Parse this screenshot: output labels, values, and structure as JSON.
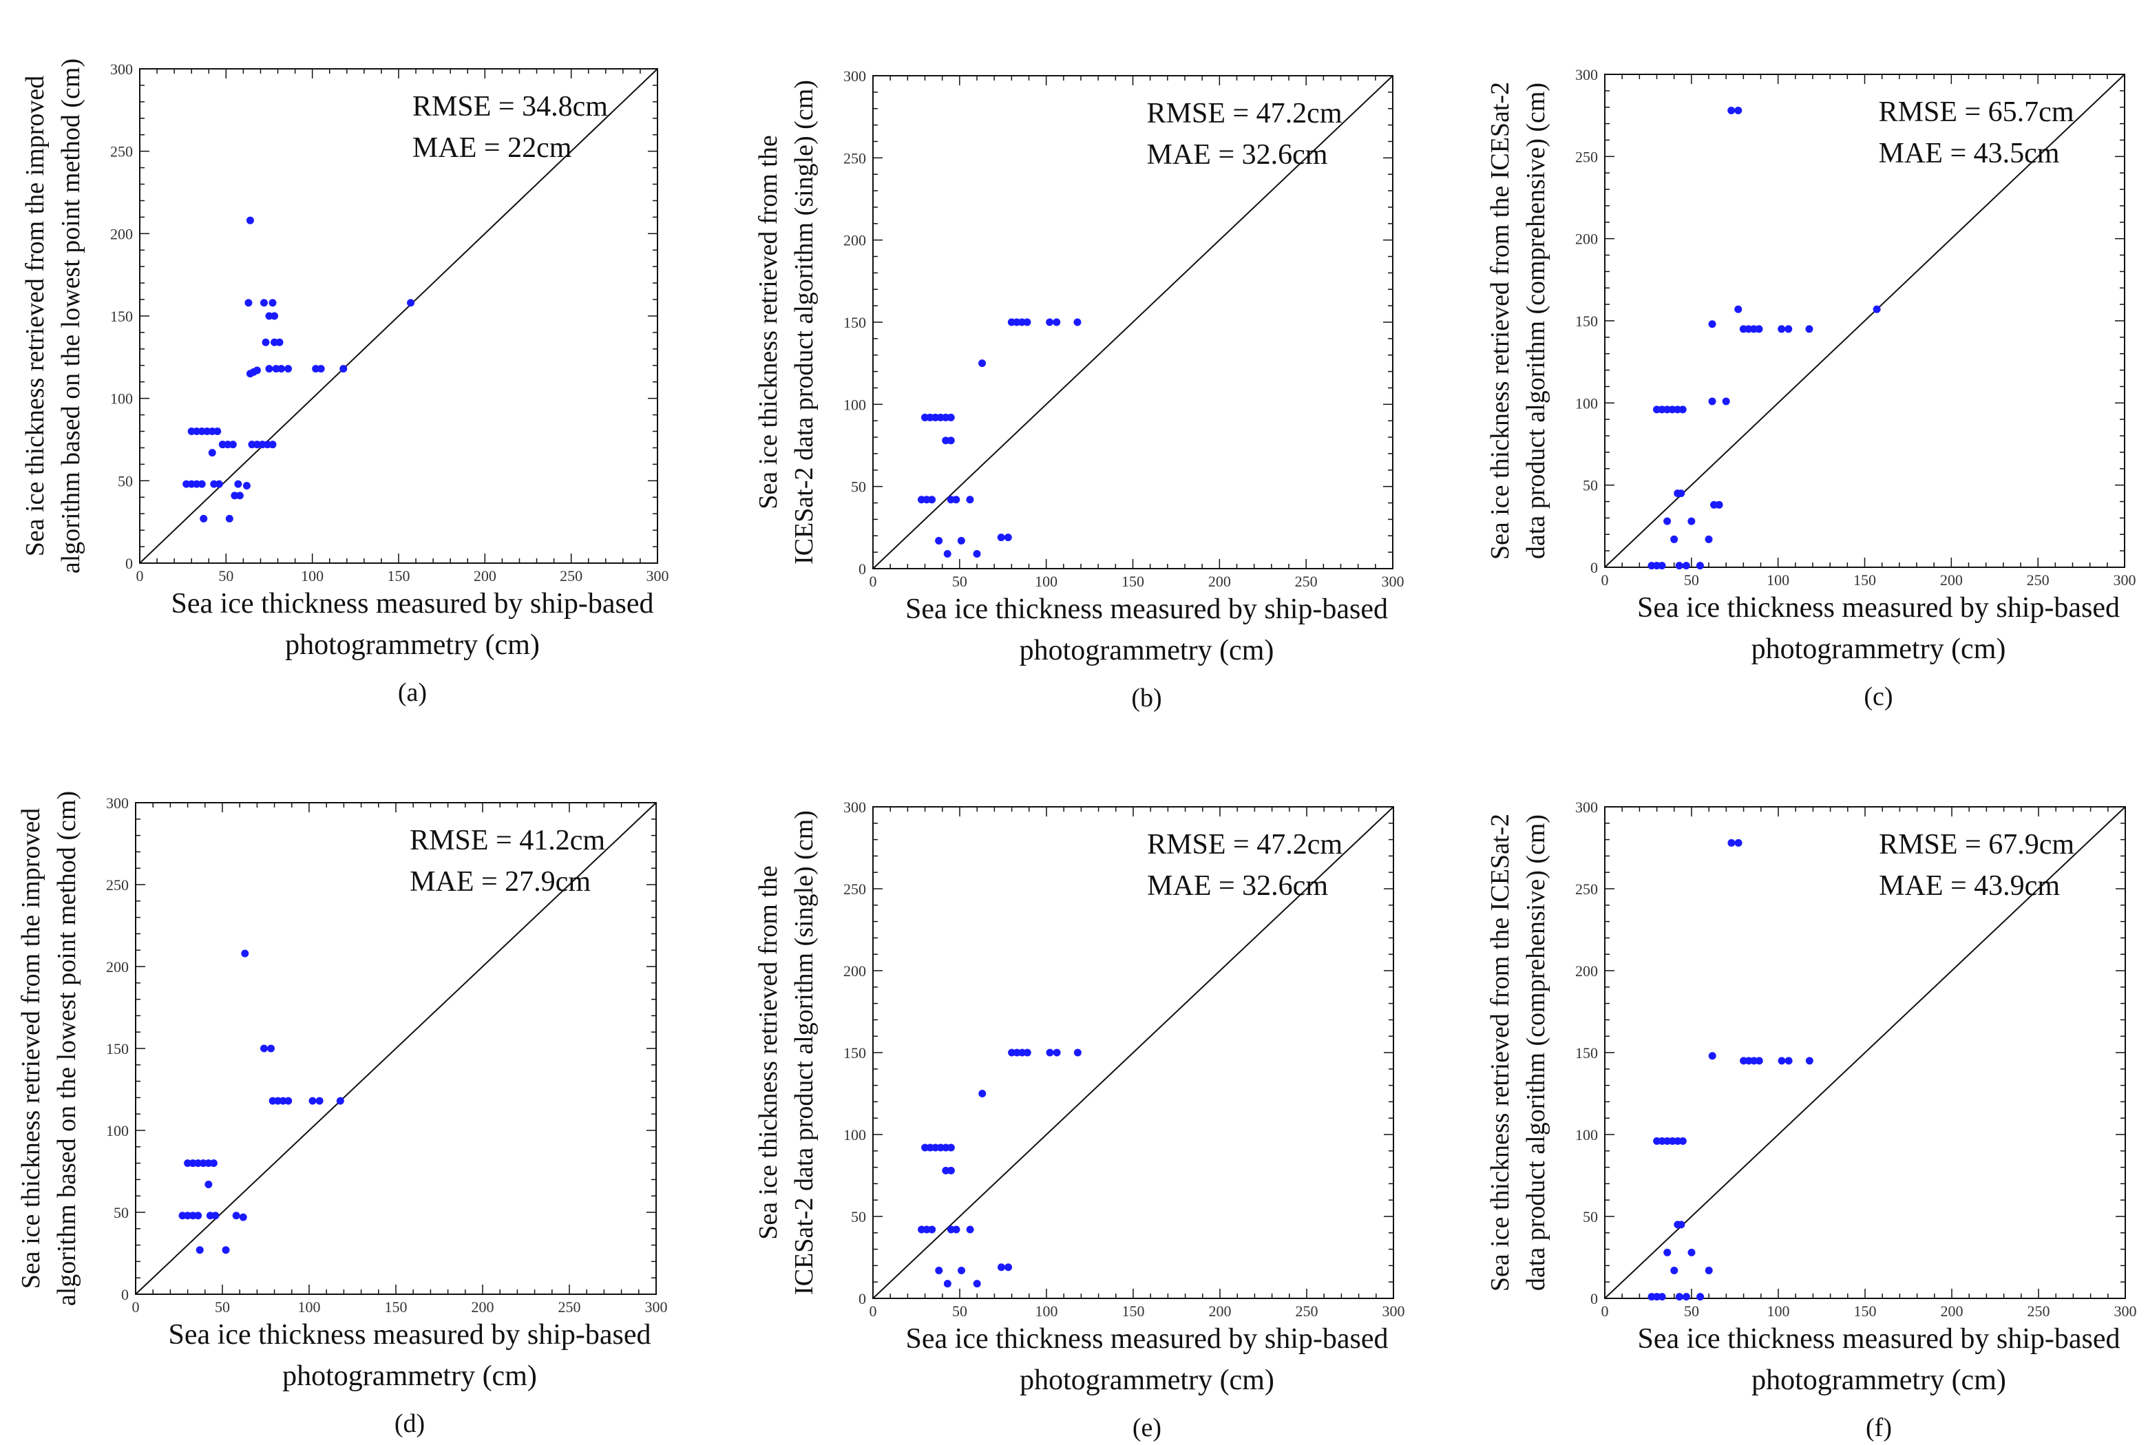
{
  "chart_data": [
    {
      "type": "scatter",
      "panel_label": "(a)",
      "xlabel": [
        "Sea ice thickness measured by ship-based",
        "photogrammetry (cm)"
      ],
      "ylabel": [
        "Sea ice thickness retrieved from the improved",
        "algorithm based on the lowest point method (cm)"
      ],
      "xlim": [
        0,
        300
      ],
      "ylim": [
        0,
        300
      ],
      "xticks": [
        0,
        50,
        100,
        150,
        200,
        250,
        300
      ],
      "yticks": [
        0,
        50,
        100,
        150,
        200,
        250,
        300
      ],
      "annotations": [
        "RMSE = 34.8cm",
        "MAE = 22cm"
      ],
      "reference_line": "1:1",
      "marker_color": "#1a1aff",
      "points": [
        [
          27,
          48
        ],
        [
          30,
          48
        ],
        [
          33,
          48
        ],
        [
          36,
          48
        ],
        [
          30,
          80
        ],
        [
          33,
          80
        ],
        [
          36,
          80
        ],
        [
          39,
          80
        ],
        [
          42,
          80
        ],
        [
          45,
          80
        ],
        [
          42,
          67
        ],
        [
          37,
          27
        ],
        [
          43,
          48
        ],
        [
          46,
          48
        ],
        [
          48,
          72
        ],
        [
          51,
          72
        ],
        [
          54,
          72
        ],
        [
          52,
          27
        ],
        [
          55,
          41
        ],
        [
          58,
          41
        ],
        [
          57,
          48
        ],
        [
          62,
          47
        ],
        [
          63,
          158
        ],
        [
          64,
          208
        ],
        [
          64,
          115
        ],
        [
          66,
          116
        ],
        [
          68,
          117
        ],
        [
          65,
          72
        ],
        [
          68,
          72
        ],
        [
          71,
          72
        ],
        [
          74,
          72
        ],
        [
          77,
          72
        ],
        [
          72,
          158
        ],
        [
          77,
          158
        ],
        [
          73,
          134
        ],
        [
          75,
          150
        ],
        [
          78,
          150
        ],
        [
          78,
          134
        ],
        [
          81,
          134
        ],
        [
          75,
          118
        ],
        [
          79,
          118
        ],
        [
          82,
          118
        ],
        [
          86,
          118
        ],
        [
          102,
          118
        ],
        [
          105,
          118
        ],
        [
          118,
          118
        ],
        [
          157,
          158
        ]
      ]
    },
    {
      "type": "scatter",
      "panel_label": "(b)",
      "xlabel": [
        "Sea ice thickness measured by ship-based",
        "photogrammetry (cm)"
      ],
      "ylabel": [
        "Sea ice thickness retrieved from the",
        "ICESat-2 data product algorithm (single) (cm)"
      ],
      "xlim": [
        0,
        300
      ],
      "ylim": [
        0,
        300
      ],
      "xticks": [
        0,
        50,
        100,
        150,
        200,
        250,
        300
      ],
      "yticks": [
        0,
        50,
        100,
        150,
        200,
        250,
        300
      ],
      "annotations": [
        "RMSE = 47.2cm",
        "MAE = 32.6cm"
      ],
      "reference_line": "1:1",
      "marker_color": "#1a1aff",
      "points": [
        [
          28,
          42
        ],
        [
          31,
          42
        ],
        [
          34,
          42
        ],
        [
          30,
          92
        ],
        [
          33,
          92
        ],
        [
          36,
          92
        ],
        [
          39,
          92
        ],
        [
          42,
          92
        ],
        [
          45,
          92
        ],
        [
          42,
          78
        ],
        [
          45,
          78
        ],
        [
          38,
          17
        ],
        [
          43,
          9
        ],
        [
          45,
          42
        ],
        [
          48,
          42
        ],
        [
          51,
          17
        ],
        [
          56,
          42
        ],
        [
          60,
          9
        ],
        [
          63,
          125
        ],
        [
          74,
          19
        ],
        [
          78,
          19
        ],
        [
          80,
          150
        ],
        [
          83,
          150
        ],
        [
          86,
          150
        ],
        [
          89,
          150
        ],
        [
          102,
          150
        ],
        [
          106,
          150
        ],
        [
          118,
          150
        ]
      ]
    },
    {
      "type": "scatter",
      "panel_label": "(c)",
      "xlabel": [
        "Sea ice thickness measured by ship-based",
        "photogrammetry (cm)"
      ],
      "ylabel": [
        "Sea ice thickness retrieved from the ICESat-2",
        "data product algorithm (comprehensive) (cm)"
      ],
      "xlim": [
        0,
        300
      ],
      "ylim": [
        0,
        300
      ],
      "xticks": [
        0,
        50,
        100,
        150,
        200,
        250,
        300
      ],
      "yticks": [
        0,
        50,
        100,
        150,
        200,
        250,
        300
      ],
      "annotations": [
        "RMSE = 65.7cm",
        "MAE = 43.5cm"
      ],
      "reference_line": "1:1",
      "marker_color": "#1a1aff",
      "points": [
        [
          27,
          1
        ],
        [
          30,
          1
        ],
        [
          33,
          1
        ],
        [
          30,
          96
        ],
        [
          33,
          96
        ],
        [
          36,
          96
        ],
        [
          39,
          96
        ],
        [
          42,
          96
        ],
        [
          45,
          96
        ],
        [
          36,
          28
        ],
        [
          40,
          17
        ],
        [
          42,
          45
        ],
        [
          44,
          45
        ],
        [
          43,
          1
        ],
        [
          47,
          1
        ],
        [
          50,
          28
        ],
        [
          55,
          1
        ],
        [
          60,
          17
        ],
        [
          63,
          38
        ],
        [
          66,
          38
        ],
        [
          62,
          148
        ],
        [
          62,
          101
        ],
        [
          70,
          101
        ],
        [
          73,
          278
        ],
        [
          77,
          278
        ],
        [
          77,
          157
        ],
        [
          80,
          145
        ],
        [
          83,
          145
        ],
        [
          86,
          145
        ],
        [
          89,
          145
        ],
        [
          102,
          145
        ],
        [
          106,
          145
        ],
        [
          118,
          145
        ],
        [
          157,
          157
        ]
      ]
    },
    {
      "type": "scatter",
      "panel_label": "(d)",
      "xlabel": [
        "Sea ice thickness measured by ship-based",
        "photogrammetry (cm)"
      ],
      "ylabel": [
        "Sea ice thickness retrieved from the improved",
        "algorithm based on the lowest point method (cm)"
      ],
      "xlim": [
        0,
        300
      ],
      "ylim": [
        0,
        300
      ],
      "xticks": [
        0,
        50,
        100,
        150,
        200,
        250,
        300
      ],
      "yticks": [
        0,
        50,
        100,
        150,
        200,
        250,
        300
      ],
      "annotations": [
        "RMSE = 41.2cm",
        "MAE = 27.9cm"
      ],
      "reference_line": "1:1",
      "marker_color": "#1a1aff",
      "points": [
        [
          27,
          48
        ],
        [
          30,
          48
        ],
        [
          33,
          48
        ],
        [
          36,
          48
        ],
        [
          30,
          80
        ],
        [
          33,
          80
        ],
        [
          36,
          80
        ],
        [
          39,
          80
        ],
        [
          42,
          80
        ],
        [
          45,
          80
        ],
        [
          42,
          67
        ],
        [
          37,
          27
        ],
        [
          43,
          48
        ],
        [
          46,
          48
        ],
        [
          52,
          27
        ],
        [
          58,
          48
        ],
        [
          62,
          47
        ],
        [
          63,
          208
        ],
        [
          74,
          150
        ],
        [
          78,
          150
        ],
        [
          79,
          118
        ],
        [
          82,
          118
        ],
        [
          85,
          118
        ],
        [
          88,
          118
        ],
        [
          102,
          118
        ],
        [
          106,
          118
        ],
        [
          118,
          118
        ]
      ]
    },
    {
      "type": "scatter",
      "panel_label": "(e)",
      "xlabel": [
        "Sea ice thickness measured by ship-based",
        "photogrammetry (cm)"
      ],
      "ylabel": [
        "Sea ice thickness retrieved from the",
        "ICESat-2 data product algorithm (single) (cm)"
      ],
      "xlim": [
        0,
        300
      ],
      "ylim": [
        0,
        300
      ],
      "xticks": [
        0,
        50,
        100,
        150,
        200,
        250,
        300
      ],
      "yticks": [
        0,
        50,
        100,
        150,
        200,
        250,
        300
      ],
      "annotations": [
        "RMSE = 47.2cm",
        "MAE = 32.6cm"
      ],
      "reference_line": "1:1",
      "marker_color": "#1a1aff",
      "points": [
        [
          28,
          42
        ],
        [
          31,
          42
        ],
        [
          34,
          42
        ],
        [
          30,
          92
        ],
        [
          33,
          92
        ],
        [
          36,
          92
        ],
        [
          39,
          92
        ],
        [
          42,
          92
        ],
        [
          45,
          92
        ],
        [
          42,
          78
        ],
        [
          45,
          78
        ],
        [
          38,
          17
        ],
        [
          43,
          9
        ],
        [
          45,
          42
        ],
        [
          48,
          42
        ],
        [
          51,
          17
        ],
        [
          56,
          42
        ],
        [
          60,
          9
        ],
        [
          63,
          125
        ],
        [
          74,
          19
        ],
        [
          78,
          19
        ],
        [
          80,
          150
        ],
        [
          83,
          150
        ],
        [
          86,
          150
        ],
        [
          89,
          150
        ],
        [
          102,
          150
        ],
        [
          106,
          150
        ],
        [
          118,
          150
        ]
      ]
    },
    {
      "type": "scatter",
      "panel_label": "(f)",
      "xlabel": [
        "Sea ice thickness measured by ship-based",
        "photogrammetry (cm)"
      ],
      "ylabel": [
        "Sea ice thickness retrieved from the ICESat-2",
        "data product algorithm (comprehensive) (cm)"
      ],
      "xlim": [
        0,
        300
      ],
      "ylim": [
        0,
        300
      ],
      "xticks": [
        0,
        50,
        100,
        150,
        200,
        250,
        300
      ],
      "yticks": [
        0,
        50,
        100,
        150,
        200,
        250,
        300
      ],
      "annotations": [
        "RMSE = 67.9cm",
        "MAE = 43.9cm"
      ],
      "reference_line": "1:1",
      "marker_color": "#1a1aff",
      "points": [
        [
          27,
          1
        ],
        [
          30,
          1
        ],
        [
          33,
          1
        ],
        [
          30,
          96
        ],
        [
          33,
          96
        ],
        [
          36,
          96
        ],
        [
          39,
          96
        ],
        [
          42,
          96
        ],
        [
          45,
          96
        ],
        [
          36,
          28
        ],
        [
          40,
          17
        ],
        [
          42,
          45
        ],
        [
          44,
          45
        ],
        [
          43,
          1
        ],
        [
          47,
          1
        ],
        [
          50,
          28
        ],
        [
          55,
          1
        ],
        [
          60,
          17
        ],
        [
          62,
          148
        ],
        [
          73,
          278
        ],
        [
          77,
          278
        ],
        [
          80,
          145
        ],
        [
          83,
          145
        ],
        [
          86,
          145
        ],
        [
          89,
          145
        ],
        [
          102,
          145
        ],
        [
          106,
          145
        ],
        [
          118,
          145
        ]
      ]
    }
  ]
}
